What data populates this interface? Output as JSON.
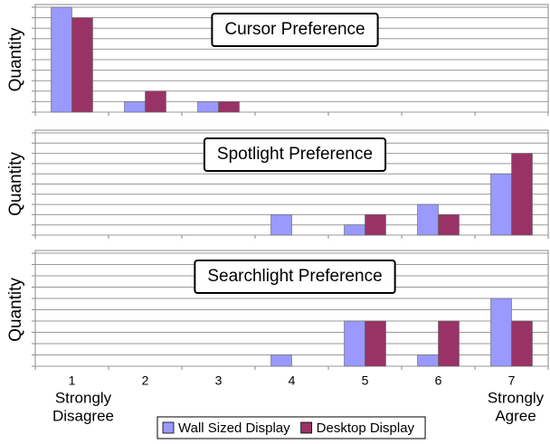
{
  "chart_data": [
    {
      "type": "bar",
      "title": "Cursor Preference",
      "y_label": "Quantity",
      "series": [
        {
          "name": "Wall Sized Display",
          "color": "#9999ff",
          "values": [
            10,
            1,
            1,
            0,
            0,
            0,
            0
          ]
        },
        {
          "name": "Desktop Display",
          "color": "#993366",
          "values": [
            9,
            2,
            1,
            0,
            0,
            0,
            0
          ]
        }
      ],
      "ylim": [
        0,
        10
      ],
      "yticks": [
        0,
        1,
        2,
        3,
        4,
        5,
        6,
        7,
        8,
        9,
        10
      ],
      "grid": true
    },
    {
      "type": "bar",
      "title": "Spotlight Preference",
      "y_label": "Quantity",
      "series": [
        {
          "name": "Wall Sized Display",
          "color": "#9999ff",
          "values": [
            0,
            0,
            0,
            2,
            1,
            3,
            6
          ]
        },
        {
          "name": "Desktop Display",
          "color": "#993366",
          "values": [
            0,
            0,
            0,
            0,
            2,
            2,
            8
          ]
        }
      ],
      "ylim": [
        0,
        10
      ],
      "yticks": [
        0,
        1,
        2,
        3,
        4,
        5,
        6,
        7,
        8,
        9,
        10
      ],
      "grid": true
    },
    {
      "type": "bar",
      "title": "Searchlight Preference",
      "y_label": "Quantity",
      "categories": [
        "1",
        "2",
        "3",
        "4",
        "5",
        "6",
        "7"
      ],
      "annotations": [
        [
          "Strongly",
          "Disagree"
        ],
        [
          "Strongly",
          "Agree"
        ]
      ],
      "series": [
        {
          "name": "Wall Sized Display",
          "color": "#9999ff",
          "values": [
            0,
            0,
            0,
            1,
            4,
            1,
            6
          ]
        },
        {
          "name": "Desktop Display",
          "color": "#993366",
          "values": [
            0,
            0,
            0,
            0,
            4,
            4,
            4
          ]
        }
      ],
      "ylim": [
        0,
        10
      ],
      "yticks": [
        0,
        1,
        2,
        3,
        4,
        5,
        6,
        7,
        8,
        9,
        10
      ],
      "grid": true,
      "legend": "bottom"
    }
  ]
}
